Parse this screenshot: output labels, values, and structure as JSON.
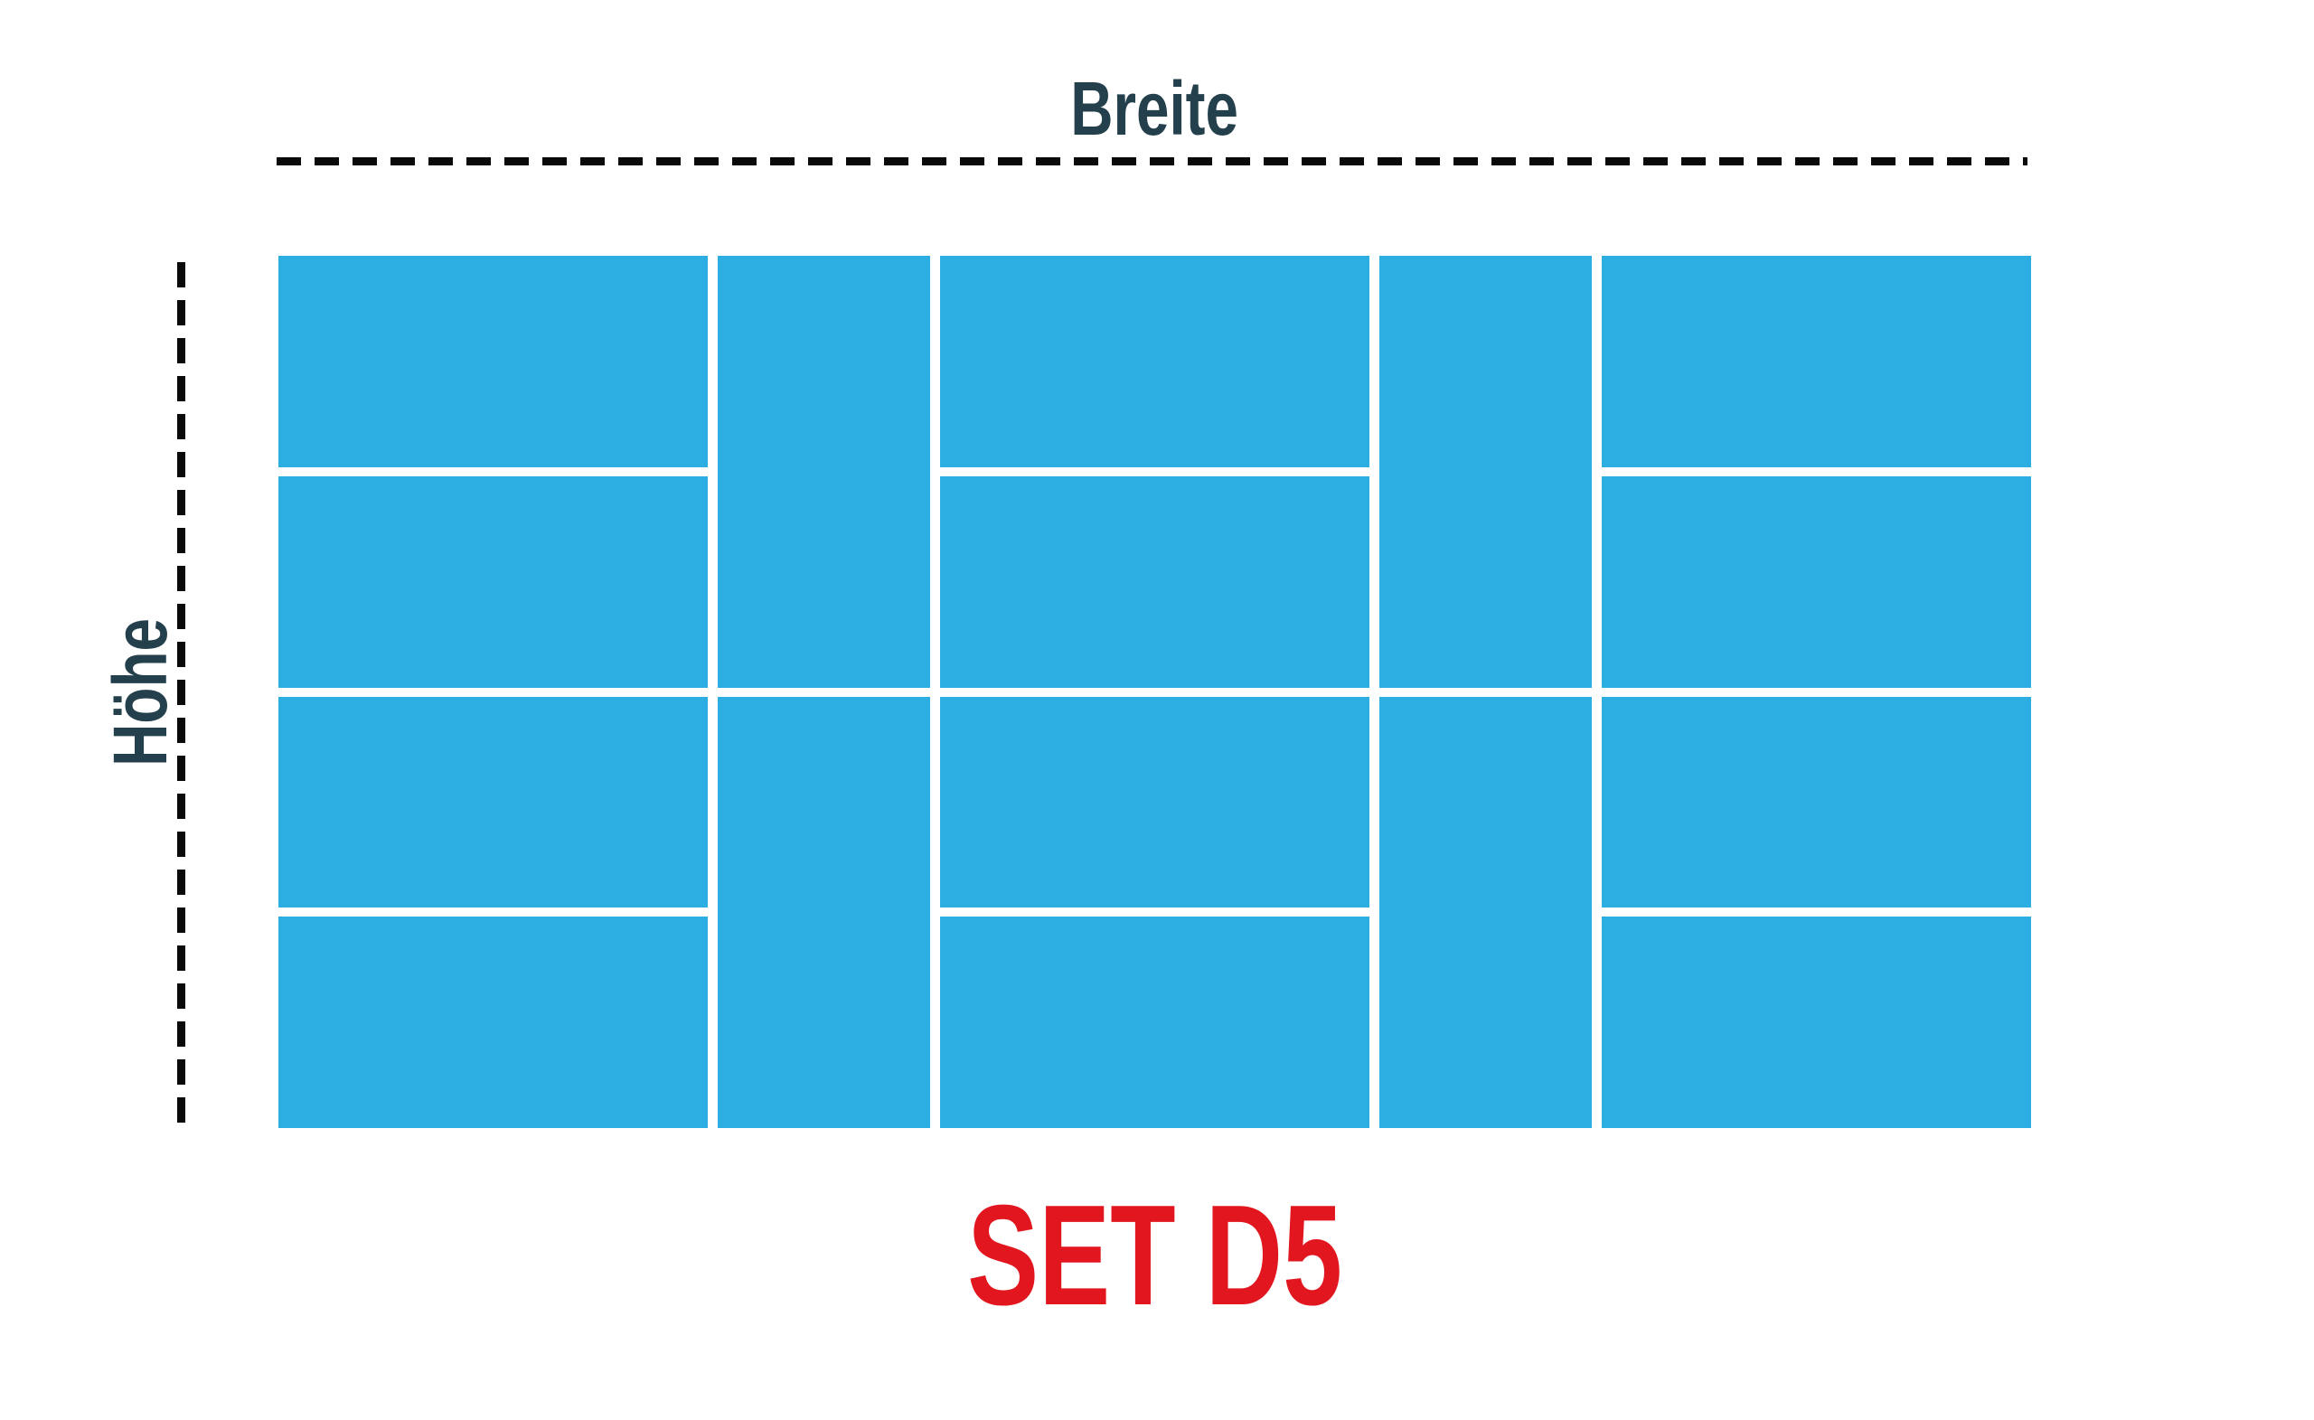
{
  "diagram": {
    "set_title": "SET D5",
    "width_label": "Breite",
    "height_label": "Höhe"
  },
  "colors": {
    "background": "#FFFFFF",
    "panel_blue": "#2CAEE3",
    "label_dark": "#24404D",
    "title_red": "#E1161E",
    "dash_line": "#0A0A0A"
  },
  "panel_set": {
    "columns": 5,
    "rows": 4,
    "column_pattern": [
      "wide",
      "narrow",
      "wide",
      "narrow",
      "wide"
    ],
    "wide_column_ratio": 475,
    "narrow_column_ratio": 235,
    "panel_count": 16,
    "tiles": [
      {
        "col": 1,
        "row": 1,
        "colspan": 1,
        "rowspan": 1,
        "orientation": "horizontal"
      },
      {
        "col": 2,
        "row": 1,
        "colspan": 1,
        "rowspan": 2,
        "orientation": "vertical"
      },
      {
        "col": 3,
        "row": 1,
        "colspan": 1,
        "rowspan": 1,
        "orientation": "horizontal"
      },
      {
        "col": 4,
        "row": 1,
        "colspan": 1,
        "rowspan": 2,
        "orientation": "vertical"
      },
      {
        "col": 5,
        "row": 1,
        "colspan": 1,
        "rowspan": 1,
        "orientation": "horizontal"
      },
      {
        "col": 1,
        "row": 2,
        "colspan": 1,
        "rowspan": 1,
        "orientation": "horizontal"
      },
      {
        "col": 3,
        "row": 2,
        "colspan": 1,
        "rowspan": 1,
        "orientation": "horizontal"
      },
      {
        "col": 5,
        "row": 2,
        "colspan": 1,
        "rowspan": 1,
        "orientation": "horizontal"
      },
      {
        "col": 1,
        "row": 3,
        "colspan": 1,
        "rowspan": 1,
        "orientation": "horizontal"
      },
      {
        "col": 2,
        "row": 3,
        "colspan": 1,
        "rowspan": 2,
        "orientation": "vertical"
      },
      {
        "col": 3,
        "row": 3,
        "colspan": 1,
        "rowspan": 1,
        "orientation": "horizontal"
      },
      {
        "col": 4,
        "row": 3,
        "colspan": 1,
        "rowspan": 2,
        "orientation": "vertical"
      },
      {
        "col": 5,
        "row": 3,
        "colspan": 1,
        "rowspan": 1,
        "orientation": "horizontal"
      },
      {
        "col": 1,
        "row": 4,
        "colspan": 1,
        "rowspan": 1,
        "orientation": "horizontal"
      },
      {
        "col": 3,
        "row": 4,
        "colspan": 1,
        "rowspan": 1,
        "orientation": "horizontal"
      },
      {
        "col": 5,
        "row": 4,
        "colspan": 1,
        "rowspan": 1,
        "orientation": "horizontal"
      }
    ]
  }
}
